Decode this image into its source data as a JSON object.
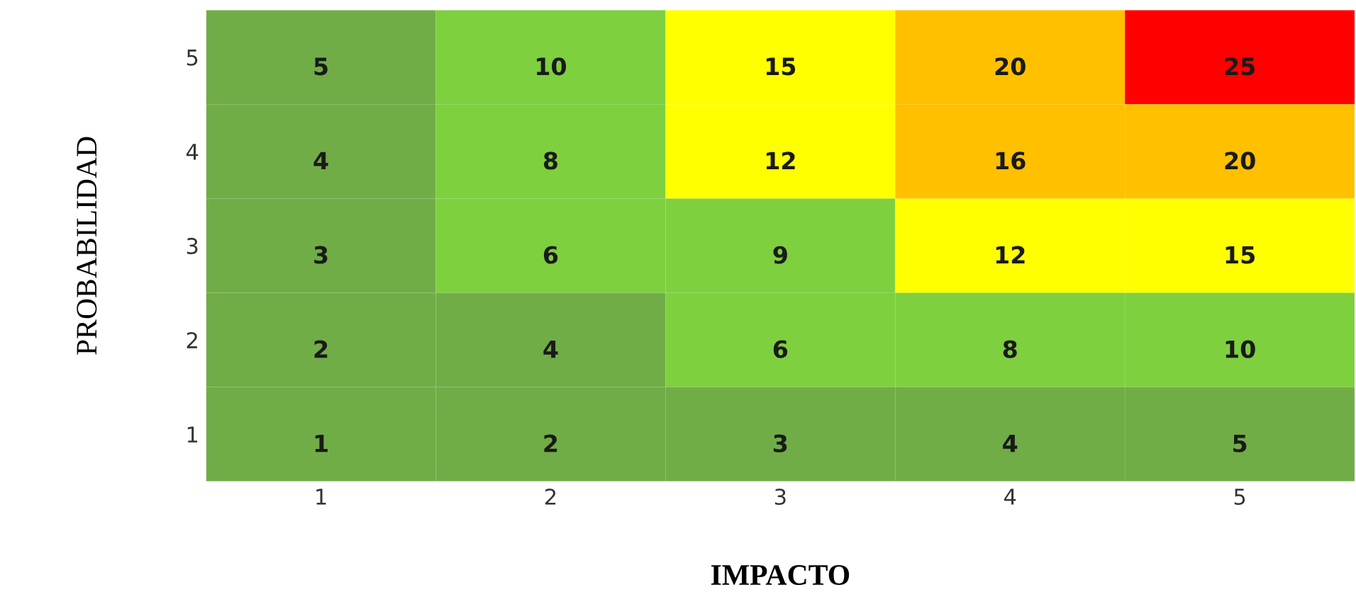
{
  "chart_data": {
    "type": "heatmap",
    "xlabel": "IMPACTO",
    "ylabel": "PROBABILIDAD",
    "categories": [
      "1",
      "2",
      "3",
      "4",
      "5"
    ],
    "y_categories": [
      "5",
      "4",
      "3",
      "2",
      "1"
    ],
    "cells": [
      [
        5,
        10,
        15,
        20,
        25
      ],
      [
        4,
        8,
        12,
        16,
        20
      ],
      [
        3,
        6,
        9,
        12,
        15
      ],
      [
        2,
        4,
        6,
        8,
        10
      ],
      [
        1,
        2,
        3,
        4,
        5
      ]
    ],
    "colors": [
      [
        "#70ad47",
        "#7ed03f",
        "#ffff00",
        "#ffc000",
        "#ff0000"
      ],
      [
        "#70ad47",
        "#7ed03f",
        "#ffff00",
        "#ffc000",
        "#ffc000"
      ],
      [
        "#70ad47",
        "#7ed03f",
        "#7ed03f",
        "#ffff00",
        "#ffff00"
      ],
      [
        "#70ad47",
        "#70ad47",
        "#7ed03f",
        "#7ed03f",
        "#7ed03f"
      ],
      [
        "#70ad47",
        "#70ad47",
        "#70ad47",
        "#70ad47",
        "#70ad47"
      ]
    ],
    "data_labels": true,
    "grid": false,
    "legend": false
  }
}
